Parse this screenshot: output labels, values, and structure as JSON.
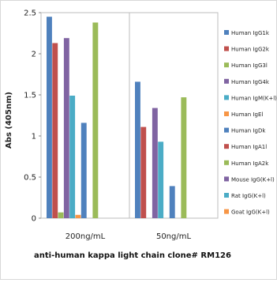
{
  "chart_data": {
    "type": "bar",
    "title": "",
    "xlabel": "anti-human kappa light chain clone# RM126",
    "ylabel": "Abs (405nm)",
    "ylim": [
      0,
      2.5
    ],
    "yticks": [
      "0",
      "0.5",
      "1",
      "1.5",
      "2",
      "2.5"
    ],
    "categories": [
      "200ng/mL",
      "50ng/mL"
    ],
    "grid": false,
    "legend_position": "right",
    "series": [
      {
        "name": "Human IgG1k",
        "color": "#4f81bd",
        "values": [
          2.45,
          1.66
        ]
      },
      {
        "name": "Human IgG2k",
        "color": "#c0504d",
        "values": [
          2.13,
          1.11
        ]
      },
      {
        "name": "Human IgG3l",
        "color": "#9bbb59",
        "values": [
          0.07,
          0
        ]
      },
      {
        "name": "Human IgG4k",
        "color": "#8064a2",
        "values": [
          2.19,
          1.34
        ]
      },
      {
        "name": "Human IgM(K+l)",
        "color": "#4bacc6",
        "values": [
          1.49,
          0.93
        ]
      },
      {
        "name": "Human IgEl",
        "color": "#f79646",
        "values": [
          0.04,
          0
        ]
      },
      {
        "name": "Human IgDk",
        "color": "#4f81bd",
        "values": [
          1.16,
          0.39
        ]
      },
      {
        "name": "Human IgA1l",
        "color": "#c0504d",
        "values": [
          0,
          0
        ]
      },
      {
        "name": "Human IgA2k",
        "color": "#9bbb59",
        "values": [
          2.38,
          1.47
        ]
      },
      {
        "name": "Mouse IgG(K+l)",
        "color": "#8064a2",
        "values": [
          0,
          0
        ]
      },
      {
        "name": "Rat IgG(K+l)",
        "color": "#4bacc6",
        "values": [
          0,
          0
        ]
      },
      {
        "name": "Goat IgG(K+l)",
        "color": "#f79646",
        "values": [
          0,
          0
        ]
      }
    ]
  }
}
